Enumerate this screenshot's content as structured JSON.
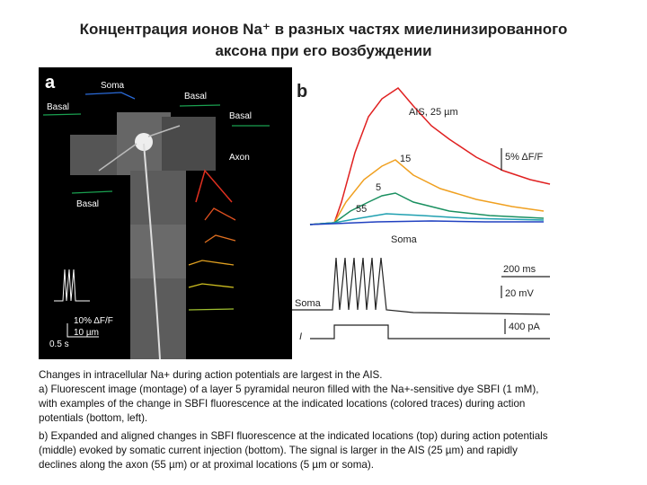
{
  "title": [
    "Концентрация ионов Na⁺ в разных частях миелинизированного",
    "аксона при его возбуждении"
  ],
  "figure": {
    "panel_a": {
      "label": "a",
      "locations": [
        "Soma",
        "Basal",
        "Basal",
        "Basal",
        "Axon",
        "Basal"
      ],
      "scale": [
        "10% ΔF/F",
        "10 µm",
        "0.5 s"
      ]
    },
    "panel_b": {
      "label": "b",
      "traces": [
        "AIS, 25 µm",
        "15",
        "5",
        "55",
        "Soma"
      ],
      "scale": [
        "5% ΔF/F",
        "200 ms",
        "20 mV",
        "400 pA"
      ],
      "rows": [
        "Soma",
        "I"
      ]
    }
  },
  "caption": [
    "Changes in intracellular Na+ during action potentials are largest in the AIS.",
    "a) Fluorescent image (montage) of a layer 5 pyramidal neuron filled with the Na+-sensitive dye SBFI (1 mM),",
    "with examples of the change in SBFI fluorescence at the indicated locations (colored traces) during action",
    "potentials (bottom, left).",
    "b) Expanded and aligned changes in SBFI fluorescence at the indicated locations (top) during action potentials",
    "(middle) evoked by somatic current injection (bottom). The signal is larger in the AIS (25 µm) and rapidly",
    "declines along the axon (55 µm) or at proximal locations (5 µm or soma)."
  ]
}
